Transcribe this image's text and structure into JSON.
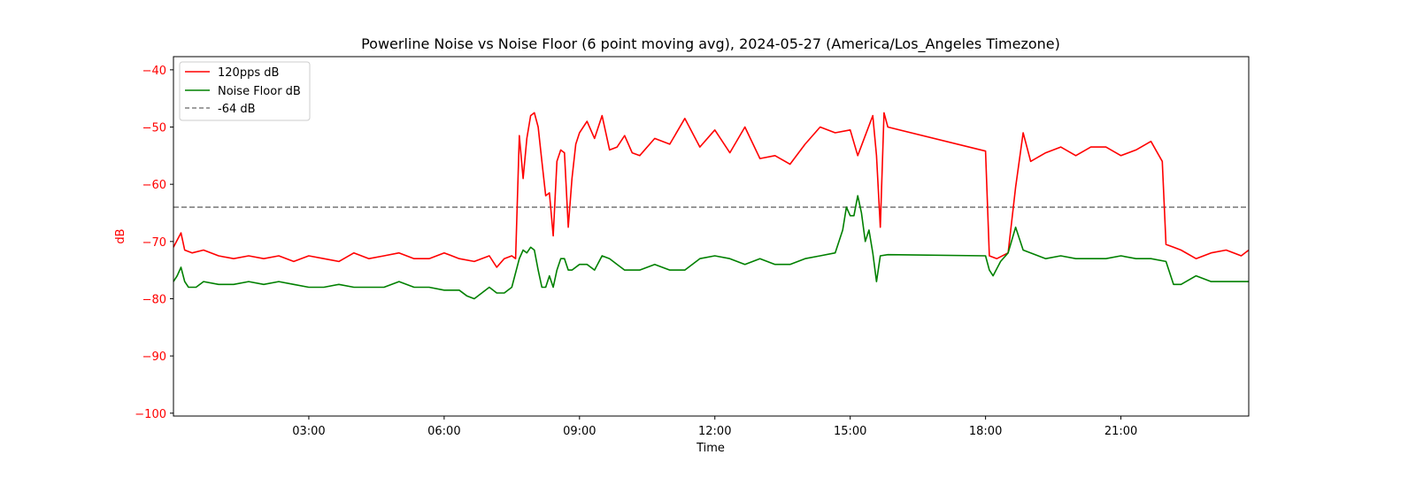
{
  "chart_data": {
    "type": "line",
    "title": "Powerline Noise vs Noise Floor (6 point moving avg), 2024-05-27 (America/Los_Angeles Timezone)",
    "xlabel": "Time",
    "ylabel": "dB",
    "ylabel_color": "#ff0000",
    "ytick_color": "#ff0000",
    "xlim": [
      "00:00",
      "23:50"
    ],
    "ylim": [
      -100.5,
      -37.7
    ],
    "yticks": [
      -40,
      -50,
      -60,
      -70,
      -80,
      -90,
      -100
    ],
    "ytick_labels": [
      "−40",
      "−50",
      "−60",
      "−70",
      "−80",
      "−90",
      "−100"
    ],
    "xticks": [
      "03:00",
      "06:00",
      "09:00",
      "12:00",
      "15:00",
      "18:00",
      "21:00"
    ],
    "grid": false,
    "legend_position": "top-left",
    "hline": {
      "name": "-64 dB",
      "y": -64,
      "color": "#808080",
      "style": "dashed"
    },
    "series": [
      {
        "name": "120pps dB",
        "color": "#ff0000",
        "x": [
          "00:00",
          "00:10",
          "00:15",
          "00:25",
          "00:40",
          "01:00",
          "01:20",
          "01:40",
          "02:00",
          "02:20",
          "02:40",
          "03:00",
          "03:20",
          "03:40",
          "04:00",
          "04:20",
          "04:40",
          "05:00",
          "05:20",
          "05:40",
          "06:00",
          "06:20",
          "06:40",
          "07:00",
          "07:10",
          "07:20",
          "07:30",
          "07:35",
          "07:40",
          "07:45",
          "07:50",
          "07:55",
          "08:00",
          "08:05",
          "08:10",
          "08:15",
          "08:20",
          "08:25",
          "08:30",
          "08:35",
          "08:40",
          "08:45",
          "08:50",
          "08:55",
          "09:00",
          "09:10",
          "09:20",
          "09:30",
          "09:40",
          "09:50",
          "10:00",
          "10:10",
          "10:20",
          "10:40",
          "11:00",
          "11:20",
          "11:40",
          "12:00",
          "12:20",
          "12:40",
          "13:00",
          "13:20",
          "13:40",
          "14:00",
          "14:20",
          "14:40",
          "15:00",
          "15:10",
          "15:20",
          "15:30",
          "15:35",
          "15:40",
          "15:45",
          "15:50",
          "18:00",
          "18:05",
          "18:15",
          "18:30",
          "18:40",
          "18:50",
          "19:00",
          "19:20",
          "19:40",
          "20:00",
          "20:20",
          "20:40",
          "21:00",
          "21:20",
          "21:40",
          "21:55",
          "22:00",
          "22:10",
          "22:20",
          "22:40",
          "23:00",
          "23:20",
          "23:40",
          "23:50"
        ],
        "values": [
          -71,
          -68.5,
          -71.5,
          -72,
          -71.5,
          -72.5,
          -73,
          -72.5,
          -73,
          -72.5,
          -73.5,
          -72.5,
          -73,
          -73.5,
          -72,
          -73,
          -72.5,
          -72,
          -73,
          -73,
          -72,
          -73,
          -73.5,
          -72.5,
          -74.5,
          -73,
          -72.5,
          -73,
          -51.5,
          -59,
          -52,
          -48,
          -47.5,
          -50,
          -56,
          -62,
          -61.5,
          -69,
          -56,
          -54,
          -54.5,
          -67.5,
          -59,
          -53,
          -51,
          -49,
          -52,
          -48,
          -54,
          -53.5,
          -51.5,
          -54.5,
          -55,
          -52,
          -53,
          -48.5,
          -53.5,
          -50.5,
          -54.5,
          -50,
          -55.5,
          -55,
          -56.5,
          -53,
          -50,
          -51,
          -50.5,
          -55,
          -51.5,
          -48,
          -55,
          -67.5,
          -47.5,
          -50,
          -54.2,
          -72.5,
          -73,
          -72,
          -60.5,
          -51,
          -56,
          -54.5,
          -53.5,
          -55,
          -53.5,
          -53.5,
          -55,
          -54,
          -52.5,
          -56,
          -70.5,
          -71,
          -71.5,
          -73,
          -72,
          -71.5,
          -72.5,
          -71.5
        ]
      },
      {
        "name": "Noise Floor dB",
        "color": "#008000",
        "x": [
          "00:00",
          "00:05",
          "00:10",
          "00:15",
          "00:20",
          "00:30",
          "00:40",
          "01:00",
          "01:20",
          "01:40",
          "02:00",
          "02:20",
          "02:40",
          "03:00",
          "03:20",
          "03:40",
          "04:00",
          "04:20",
          "04:40",
          "05:00",
          "05:20",
          "05:40",
          "06:00",
          "06:20",
          "06:30",
          "06:40",
          "06:50",
          "07:00",
          "07:10",
          "07:20",
          "07:30",
          "07:40",
          "07:45",
          "07:50",
          "07:55",
          "08:00",
          "08:05",
          "08:10",
          "08:15",
          "08:20",
          "08:25",
          "08:30",
          "08:35",
          "08:40",
          "08:45",
          "08:50",
          "09:00",
          "09:10",
          "09:20",
          "09:30",
          "09:40",
          "09:50",
          "10:00",
          "10:20",
          "10:40",
          "11:00",
          "11:20",
          "11:40",
          "12:00",
          "12:20",
          "12:40",
          "13:00",
          "13:20",
          "13:40",
          "14:00",
          "14:20",
          "14:40",
          "14:50",
          "14:55",
          "15:00",
          "15:05",
          "15:10",
          "15:15",
          "15:20",
          "15:25",
          "15:30",
          "15:35",
          "15:40",
          "15:50",
          "18:00",
          "18:05",
          "18:10",
          "18:20",
          "18:30",
          "18:40",
          "18:50",
          "19:00",
          "19:20",
          "19:40",
          "20:00",
          "20:20",
          "20:40",
          "21:00",
          "21:20",
          "21:40",
          "22:00",
          "22:10",
          "22:20",
          "22:40",
          "23:00",
          "23:20",
          "23:40",
          "23:50"
        ],
        "values": [
          -77,
          -76,
          -74.5,
          -77,
          -78,
          -78,
          -77,
          -77.5,
          -77.5,
          -77,
          -77.5,
          -77,
          -77.5,
          -78,
          -78,
          -77.5,
          -78,
          -78,
          -78,
          -77,
          -78,
          -78,
          -78.5,
          -78.5,
          -79.5,
          -80,
          -79,
          -78,
          -79,
          -79,
          -78,
          -73,
          -71.5,
          -72,
          -71,
          -71.5,
          -75,
          -78,
          -78,
          -76,
          -78,
          -75,
          -73,
          -73,
          -75,
          -75,
          -74,
          -74,
          -75,
          -72.5,
          -73,
          -74,
          -75,
          -75,
          -74,
          -75,
          -75,
          -73,
          -72.5,
          -73,
          -74,
          -73,
          -74,
          -74,
          -73,
          -72.5,
          -72,
          -68,
          -64,
          -65.5,
          -65.5,
          -62,
          -65,
          -70,
          -68,
          -72,
          -77,
          -72.5,
          -72.3,
          -72.5,
          -75,
          -76,
          -73.5,
          -72,
          -67.5,
          -71.5,
          -72,
          -73,
          -72.5,
          -73,
          -73,
          -73,
          -72.5,
          -73,
          -73,
          -73.5,
          -77.5,
          -77.5,
          -76,
          -77,
          -77,
          -77,
          -77
        ]
      }
    ]
  }
}
